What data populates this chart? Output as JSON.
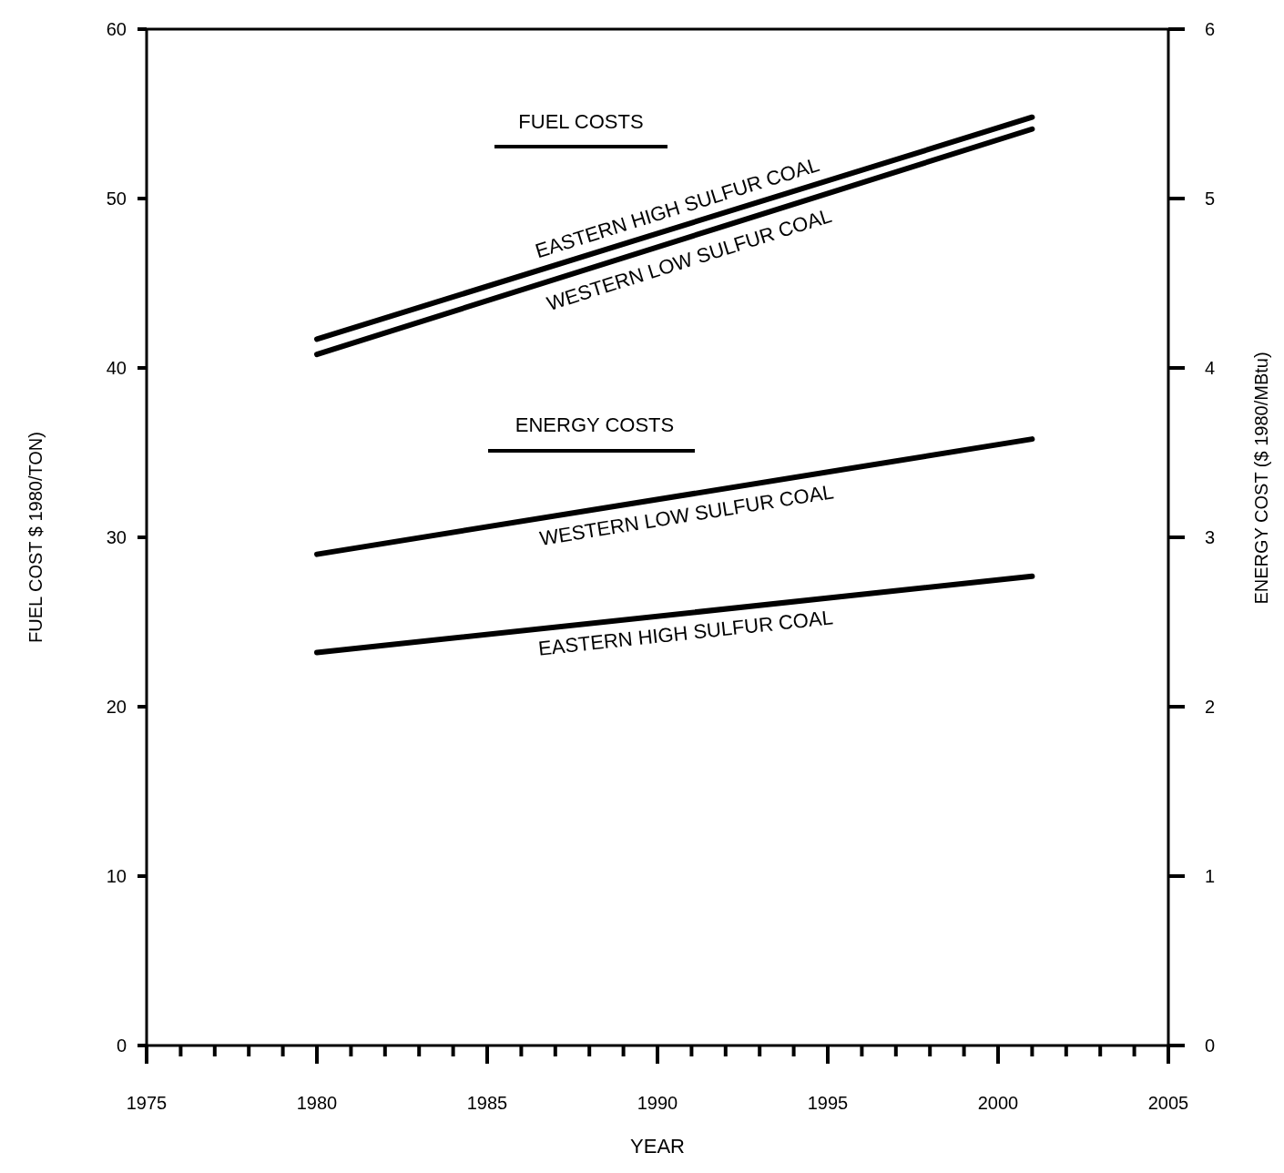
{
  "chart_data": {
    "type": "line",
    "xlabel": "YEAR",
    "ylabel": "FUEL COST $ 1980/TON)",
    "y2label": "ENERGY COST ($ 1980/MBtu)",
    "x": [
      1980,
      2001
    ],
    "series": [
      {
        "name": "EASTERN HIGH SULFUR COAL",
        "color": "#000000",
        "values": [
          41.7,
          54.8
        ]
      },
      {
        "name": "WESTERN LOW SULFUR COAL",
        "color": "#000000",
        "values": [
          40.8,
          54.1
        ]
      },
      {
        "name": "WESTERN LOW SULFUR COAL",
        "color": "#000000",
        "values": [
          2.9,
          3.58
        ],
        "axis": "y2"
      },
      {
        "name": "EASTERN HIGH SULFUR COAL",
        "color": "#000000",
        "values": [
          2.32,
          2.77
        ],
        "axis": "y2"
      }
    ],
    "xlim": [
      1975,
      2005
    ],
    "xticks": [
      1975,
      {
        "value": 1976,
        "label": null
      },
      {
        "value": 1977,
        "label": null
      },
      {
        "value": 1978,
        "label": null
      },
      {
        "value": 1979,
        "label": null
      },
      1980,
      {
        "value": 1981,
        "label": null
      },
      {
        "value": 1982,
        "label": null
      },
      {
        "value": 1983,
        "label": null
      },
      {
        "value": 1984,
        "label": null
      },
      1985,
      {
        "value": 1986,
        "label": null
      },
      {
        "value": 1987,
        "label": null
      },
      {
        "value": 1988,
        "label": null
      },
      {
        "value": 1989,
        "label": null
      },
      1990,
      {
        "value": 1991,
        "label": null
      },
      {
        "value": 1992,
        "label": null
      },
      {
        "value": 1993,
        "label": null
      },
      {
        "value": 1994,
        "label": null
      },
      1995,
      {
        "value": 1996,
        "label": null
      },
      {
        "value": 1997,
        "label": null
      },
      {
        "value": 1998,
        "label": null
      },
      {
        "value": 1999,
        "label": null
      },
      2000,
      {
        "value": 2001,
        "label": null
      },
      {
        "value": 2002,
        "label": null
      },
      {
        "value": 2003,
        "label": null
      },
      {
        "value": 2004,
        "label": null
      },
      2005
    ],
    "ylim": [
      0,
      60
    ],
    "yticks": [
      0,
      10,
      20,
      30,
      40,
      50,
      60
    ],
    "y2lim": [
      0,
      6
    ],
    "y2ticks": [
      0,
      1,
      2,
      3,
      4,
      5,
      6
    ],
    "annotations": [
      "FUEL COSTS",
      "ENERGY COSTS"
    ],
    "grid": false,
    "line_style": "solid"
  }
}
